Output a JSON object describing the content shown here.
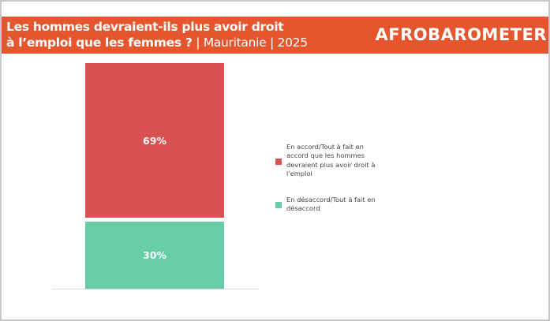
{
  "header": {
    "title_line1": "Les hommes devraient-ils plus avoir droit",
    "title_line2": "à l’emploi que les femmes ?",
    "subtitle": " | Mauritanie | 2025",
    "logo": "AFROBAROMETER",
    "color": "#e5562f"
  },
  "chart_data": {
    "type": "bar",
    "stacked": true,
    "categories": [
      ""
    ],
    "series": [
      {
        "name": "En accord/Tout à fait en accord que les hommes devraient plus avoir droit à l'emploi",
        "values": [
          69
        ],
        "label": "69%",
        "color": "#d95153"
      },
      {
        "name": "En désaccord/Tout à fait en désaccord",
        "values": [
          30
        ],
        "label": "30%",
        "color": "#66cda6"
      }
    ],
    "ylim": [
      0,
      100
    ],
    "grid": false,
    "legend": "right"
  }
}
